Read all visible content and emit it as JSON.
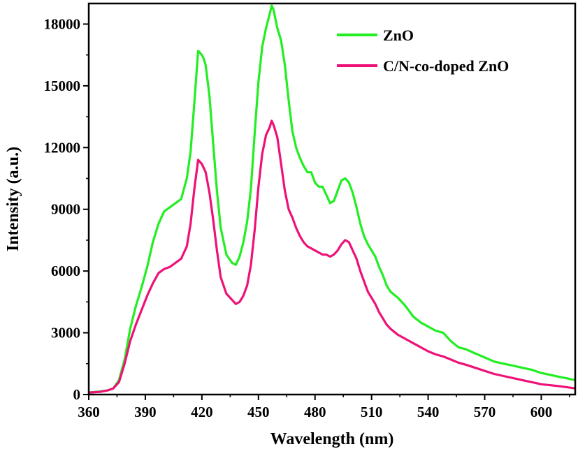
{
  "chart_data": {
    "type": "line",
    "xlabel": "Wavelength (nm)",
    "ylabel": "Intensity (a.u.)",
    "xlim": [
      360,
      618
    ],
    "ylim": [
      0,
      19000
    ],
    "xticks": [
      360,
      390,
      420,
      450,
      480,
      510,
      540,
      570,
      600
    ],
    "yticks": [
      0,
      3000,
      6000,
      9000,
      12000,
      15000,
      18000
    ],
    "grid": false,
    "legend": "top-right",
    "series": [
      {
        "name": "ZnO",
        "color": "#22ee22",
        "x": [
          360,
          366,
          370,
          373,
          376,
          379,
          382,
          385,
          388,
          391,
          394,
          397,
          400,
          403,
          406,
          409,
          412,
          414,
          416,
          418,
          419,
          420,
          421,
          422,
          424,
          426,
          428,
          430,
          433,
          436,
          438,
          440,
          442,
          444,
          446,
          448,
          450,
          452,
          454,
          456,
          457,
          458,
          460,
          462,
          464,
          466,
          468,
          470,
          472,
          474,
          476,
          478,
          480,
          482,
          484,
          486,
          488,
          490,
          492,
          494,
          496,
          498,
          500,
          502,
          504,
          506,
          508,
          510,
          512,
          514,
          516,
          518,
          520,
          524,
          528,
          532,
          536,
          540,
          544,
          548,
          552,
          556,
          560,
          565,
          570,
          575,
          580,
          585,
          590,
          595,
          600,
          605,
          610,
          614,
          618
        ],
        "y": [
          100,
          150,
          200,
          300,
          700,
          1700,
          3200,
          4300,
          5200,
          6200,
          7400,
          8300,
          8900,
          9100,
          9300,
          9500,
          10500,
          11800,
          14200,
          16700,
          16600,
          16500,
          16300,
          16000,
          14500,
          12200,
          9900,
          8100,
          6800,
          6400,
          6300,
          6700,
          7400,
          8400,
          10000,
          12700,
          15200,
          16900,
          17800,
          18500,
          18900,
          18700,
          17800,
          17200,
          16000,
          14300,
          12800,
          12000,
          11500,
          11100,
          10800,
          10800,
          10300,
          10100,
          10100,
          9700,
          9300,
          9400,
          9900,
          10400,
          10500,
          10300,
          9800,
          9100,
          8300,
          7700,
          7300,
          7000,
          6700,
          6200,
          5800,
          5300,
          5000,
          4700,
          4300,
          3800,
          3500,
          3300,
          3100,
          3000,
          2600,
          2300,
          2200,
          2000,
          1800,
          1600,
          1500,
          1400,
          1300,
          1200,
          1050,
          950,
          850,
          780,
          700
        ]
      },
      {
        "name": "C/N-co-doped ZnO",
        "color": "#ee1177",
        "x": [
          360,
          366,
          370,
          373,
          376,
          379,
          382,
          385,
          388,
          391,
          394,
          397,
          400,
          403,
          406,
          409,
          412,
          414,
          416,
          418,
          419,
          420,
          421,
          422,
          424,
          426,
          428,
          430,
          433,
          436,
          438,
          440,
          442,
          444,
          446,
          448,
          450,
          452,
          454,
          456,
          457,
          458,
          460,
          462,
          464,
          466,
          468,
          470,
          472,
          474,
          476,
          478,
          480,
          482,
          484,
          486,
          488,
          490,
          492,
          494,
          496,
          498,
          500,
          502,
          504,
          506,
          508,
          510,
          512,
          514,
          516,
          518,
          520,
          524,
          528,
          532,
          536,
          540,
          544,
          548,
          552,
          556,
          560,
          565,
          570,
          575,
          580,
          585,
          590,
          595,
          600,
          605,
          610,
          614,
          618
        ],
        "y": [
          100,
          130,
          200,
          300,
          600,
          1500,
          2600,
          3400,
          4100,
          4800,
          5400,
          5900,
          6100,
          6200,
          6400,
          6600,
          7200,
          8300,
          10000,
          11400,
          11300,
          11200,
          11000,
          10800,
          9800,
          8500,
          7000,
          5700,
          4900,
          4600,
          4400,
          4500,
          4800,
          5300,
          6300,
          8000,
          10100,
          11700,
          12600,
          13000,
          13300,
          13100,
          12500,
          11200,
          9900,
          9000,
          8600,
          8100,
          7700,
          7400,
          7200,
          7100,
          7000,
          6900,
          6800,
          6800,
          6700,
          6800,
          7000,
          7300,
          7500,
          7400,
          7000,
          6600,
          6000,
          5500,
          5000,
          4700,
          4400,
          4000,
          3700,
          3400,
          3200,
          2900,
          2700,
          2500,
          2300,
          2100,
          1950,
          1850,
          1700,
          1550,
          1450,
          1300,
          1150,
          1000,
          900,
          800,
          700,
          600,
          500,
          450,
          400,
          350,
          300
        ]
      }
    ]
  }
}
